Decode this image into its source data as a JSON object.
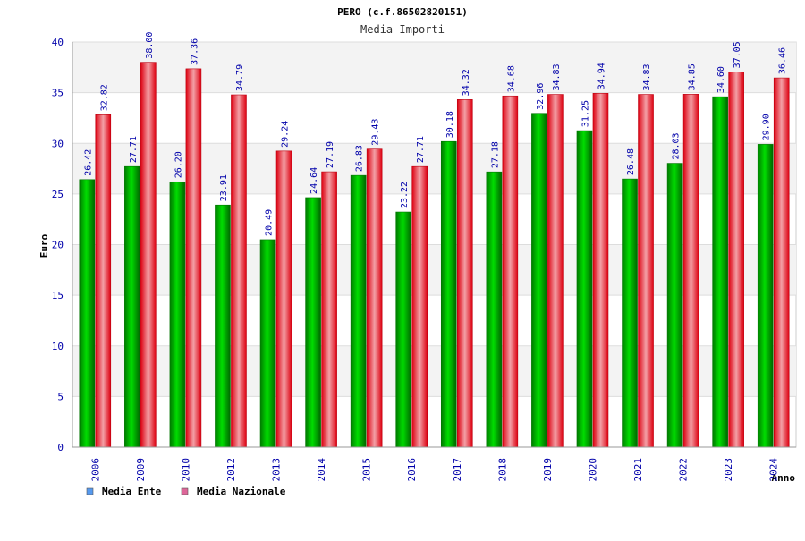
{
  "chart_data": {
    "type": "bar",
    "title": "PERO (c.f.86502820151)",
    "subtitle": "Media Importi",
    "xlabel": "Anno",
    "ylabel": "Euro",
    "ylim": [
      0,
      40
    ],
    "yticks": [
      0,
      5,
      10,
      15,
      20,
      25,
      30,
      35,
      40
    ],
    "grid": true,
    "legend_position": "bottom-left",
    "categories": [
      "2006",
      "2009",
      "2010",
      "2012",
      "2013",
      "2014",
      "2015",
      "2016",
      "2017",
      "2018",
      "2019",
      "2020",
      "2021",
      "2022",
      "2023",
      "2024"
    ],
    "series": [
      {
        "name": "Media Ente",
        "color": "#00c000",
        "legend_color": "#5599ee",
        "values": [
          26.42,
          27.71,
          26.2,
          23.91,
          20.49,
          24.64,
          26.83,
          23.22,
          30.18,
          27.18,
          32.96,
          31.25,
          26.48,
          28.03,
          34.6,
          29.9
        ],
        "labels": [
          "26.42",
          "27.71",
          "26.20",
          "23.91",
          "20.49",
          "24.64",
          "26.83",
          "23.22",
          "30.18",
          "27.18",
          "32.96",
          "31.25",
          "26.48",
          "28.03",
          "34.60",
          "29.90"
        ]
      },
      {
        "name": "Media Nazionale",
        "color": "#ff1020",
        "legend_color": "#dd6699",
        "values": [
          32.82,
          38.0,
          37.36,
          34.79,
          29.24,
          27.19,
          29.43,
          27.71,
          34.32,
          34.68,
          34.83,
          34.94,
          34.83,
          34.85,
          37.05,
          36.46
        ],
        "labels": [
          "32.82",
          "38.00",
          "37.36",
          "34.79",
          "29.24",
          "27.19",
          "29.43",
          "27.71",
          "34.32",
          "34.68",
          "34.83",
          "34.94",
          "34.83",
          "34.85",
          "37.05",
          "36.46"
        ]
      }
    ]
  }
}
